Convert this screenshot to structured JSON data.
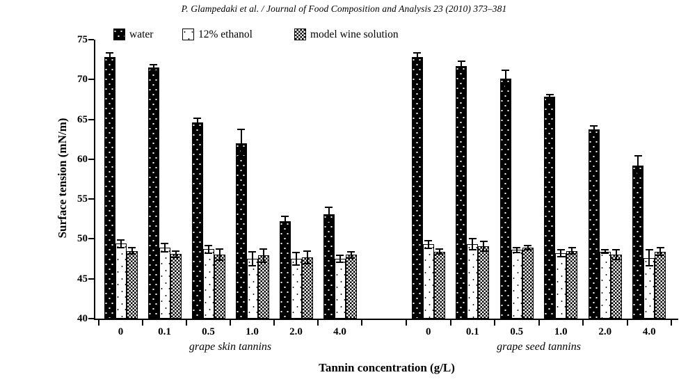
{
  "header": {
    "citation": "P. Glampedaki et al. / Journal of Food Composition and Analysis 23 (2010) 373–381"
  },
  "chart_data": {
    "type": "bar",
    "title": "",
    "ylabel": "Surface tension (mN/m)",
    "xlabel": "Tannin concentration (g/L)",
    "ylim": [
      40,
      75
    ],
    "y_ticks": [
      40,
      45,
      50,
      55,
      60,
      65,
      70,
      75
    ],
    "grid": false,
    "legend_position": "top-inside",
    "error_bars": true,
    "colors": {
      "bar_outline": "#000000",
      "background": "#ffffff"
    },
    "legend": [
      {
        "label": "water",
        "pattern": "black-with-white-dots"
      },
      {
        "label": "12% ethanol",
        "pattern": "white-speckled"
      },
      {
        "label": "model wine solution",
        "pattern": "checkerboard"
      }
    ],
    "panels": [
      {
        "label": "grape skin tannins",
        "categories": [
          "0",
          "0.1",
          "0.5",
          "1.0",
          "2.0",
          "4.0"
        ],
        "series": [
          {
            "name": "water",
            "values": [
              72.8,
              71.5,
              64.6,
              62.0,
              52.2,
              53.1
            ],
            "errors": [
              0.5,
              0.4,
              0.5,
              1.7,
              0.6,
              0.9
            ]
          },
          {
            "name": "12% ethanol",
            "values": [
              49.4,
              48.9,
              48.7,
              47.5,
              47.5,
              47.5
            ],
            "errors": [
              0.5,
              0.5,
              0.5,
              0.9,
              0.8,
              0.4
            ]
          },
          {
            "name": "model wine solution",
            "values": [
              48.5,
              48.1,
              48.0,
              47.9,
              47.7,
              48.0
            ],
            "errors": [
              0.4,
              0.4,
              0.7,
              0.8,
              0.8,
              0.4
            ]
          }
        ]
      },
      {
        "label": "grape seed tannins",
        "categories": [
          "0",
          "0.1",
          "0.5",
          "1.0",
          "2.0",
          "4.0"
        ],
        "series": [
          {
            "name": "water",
            "values": [
              72.8,
              71.7,
              70.1,
              67.8,
              63.7,
              59.2
            ],
            "errors": [
              0.5,
              0.6,
              1.1,
              0.3,
              0.5,
              1.2
            ]
          },
          {
            "name": "12% ethanol",
            "values": [
              49.3,
              49.3,
              48.6,
              48.2,
              48.4,
              47.6
            ],
            "errors": [
              0.5,
              0.7,
              0.3,
              0.4,
              0.2,
              1.0
            ]
          },
          {
            "name": "model wine solution",
            "values": [
              48.4,
              49.1,
              48.9,
              48.5,
              48.0,
              48.4
            ],
            "errors": [
              0.3,
              0.6,
              0.3,
              0.4,
              0.6,
              0.5
            ]
          }
        ]
      }
    ]
  }
}
